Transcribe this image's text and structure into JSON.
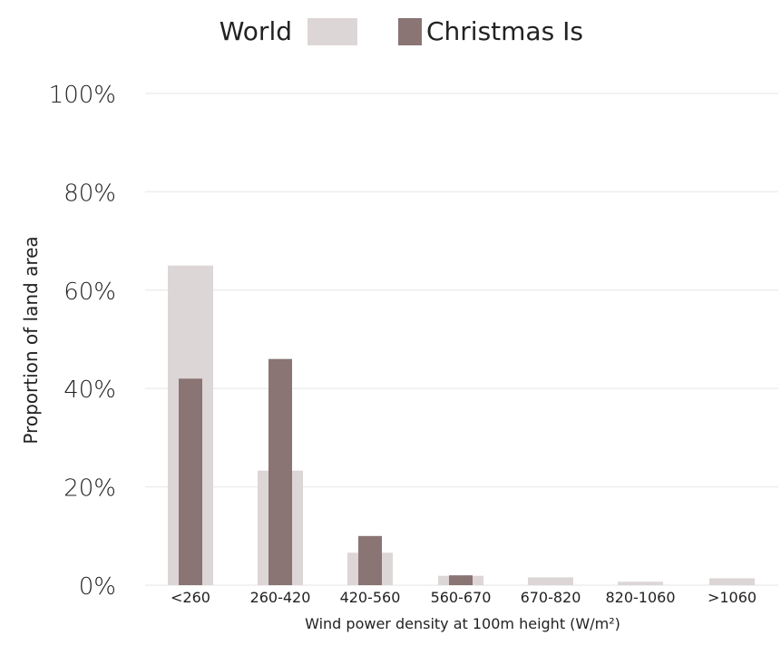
{
  "chart_data": {
    "type": "bar",
    "xlabel": "Wind power density at 100m height (W/m²)",
    "ylabel": "Proportion of land area",
    "ylim": [
      0,
      100
    ],
    "yticks": [
      "0%",
      "20%",
      "40%",
      "60%",
      "80%",
      "100%"
    ],
    "ytick_values": [
      0,
      20,
      40,
      60,
      80,
      100
    ],
    "grid": true,
    "legend": "top-center",
    "categories": [
      "<260",
      "260-420",
      "420-560",
      "560-670",
      "670-820",
      "820-1060",
      ">1060"
    ],
    "series": [
      {
        "name": "World",
        "color": "#ddd6d6",
        "values": [
          65,
          23.3,
          6.6,
          1.9,
          1.6,
          0.7,
          1.4
        ]
      },
      {
        "name": "Christmas Is",
        "color": "#8a7474",
        "values": [
          42,
          46,
          10,
          2,
          0,
          0,
          0
        ]
      }
    ]
  }
}
